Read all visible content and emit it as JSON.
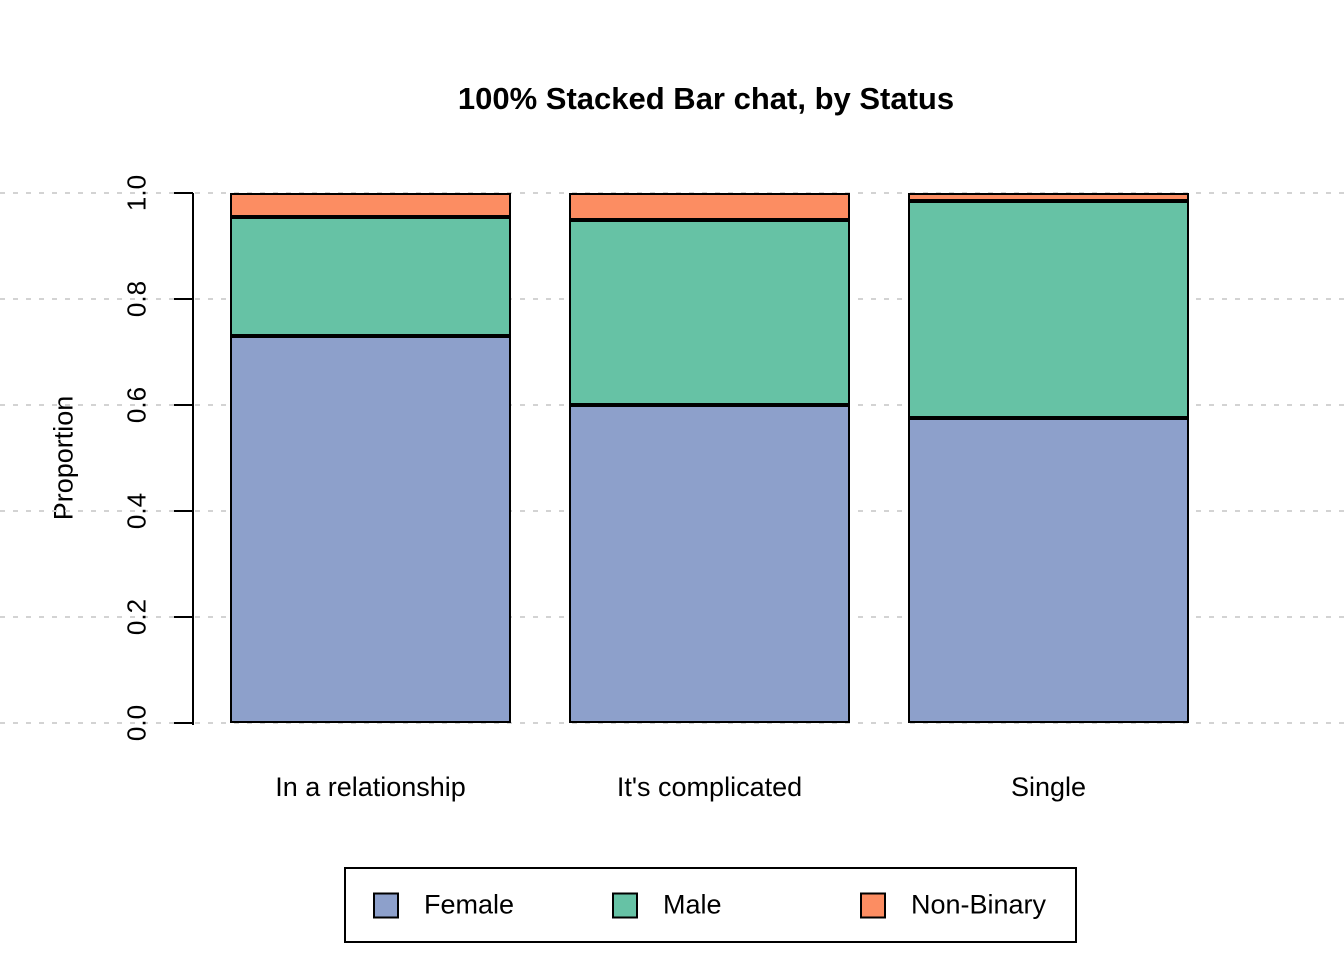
{
  "chart_data": {
    "type": "bar",
    "subtype": "stacked-100-percent",
    "title": "100% Stacked Bar chat, by Status",
    "ylabel": "Proportion",
    "xlabel": "",
    "categories": [
      "In a relationship",
      "It's complicated",
      "Single"
    ],
    "series": [
      {
        "name": "Female",
        "color": "#8DA0CB",
        "values": [
          0.73,
          0.6,
          0.575
        ]
      },
      {
        "name": "Male",
        "color": "#66C2A5",
        "values": [
          0.225,
          0.35,
          0.41
        ]
      },
      {
        "name": "Non-Binary",
        "color": "#FC8D62",
        "values": [
          0.045,
          0.05,
          0.015
        ]
      }
    ],
    "yticks": [
      "0.0",
      "0.2",
      "0.4",
      "0.6",
      "0.8",
      "1.0"
    ],
    "ylim": [
      0,
      1
    ],
    "grid": "horizontal dashed gridlines at each y tick, full figure width",
    "gridline_color": "#D3D3D3",
    "bar_border_color": "#000000",
    "legend_position": "bottom",
    "legend_entries": [
      "Female",
      "Male",
      "Non-Binary"
    ]
  }
}
